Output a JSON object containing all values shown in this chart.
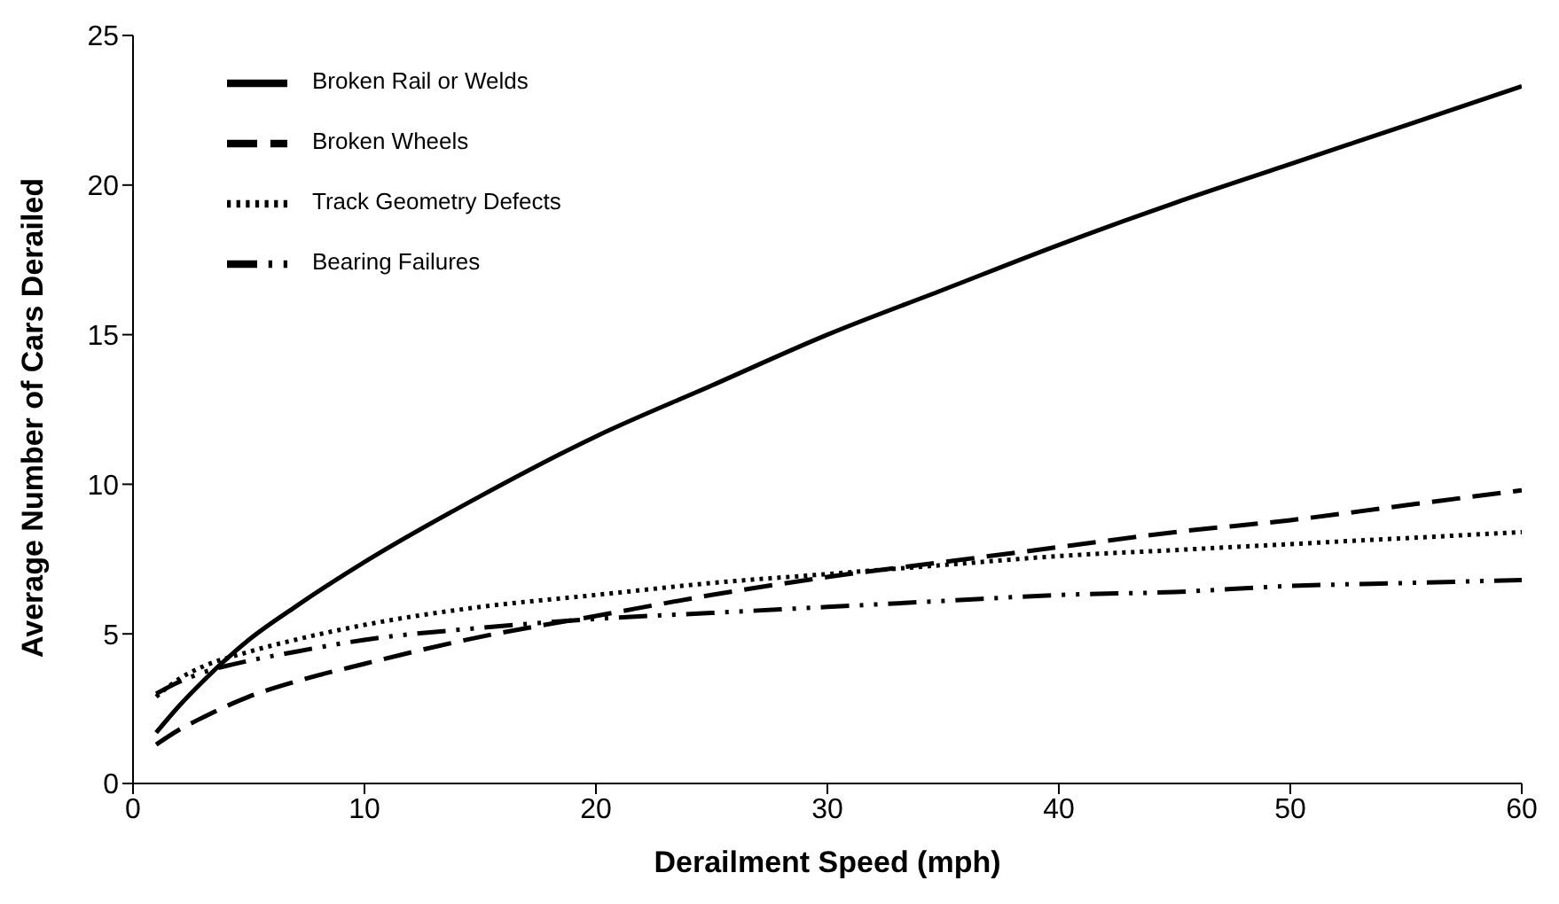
{
  "chart_data": {
    "type": "line",
    "xlabel": "Derailment Speed (mph)",
    "ylabel": "Average Number of Cars Derailed",
    "x": [
      1,
      2,
      3,
      5,
      7,
      10,
      15,
      20,
      25,
      30,
      35,
      40,
      45,
      50,
      55,
      60
    ],
    "series": [
      {
        "name": "Broken Rail or Welds",
        "color": "#000000",
        "line_style": "solid",
        "values": [
          1.7,
          2.6,
          3.4,
          4.8,
          5.9,
          7.4,
          9.6,
          11.6,
          13.3,
          15.0,
          16.5,
          18.0,
          19.4,
          20.7,
          22.0,
          23.3
        ]
      },
      {
        "name": "Broken Wheels",
        "color": "#000000",
        "line_style": "dashed",
        "values": [
          1.3,
          1.8,
          2.2,
          2.9,
          3.4,
          4.0,
          4.9,
          5.6,
          6.3,
          6.9,
          7.4,
          7.9,
          8.4,
          8.8,
          9.3,
          9.8
        ]
      },
      {
        "name": "Track Geometry Defects",
        "color": "#000000",
        "line_style": "dotted",
        "values": [
          2.9,
          3.5,
          3.9,
          4.4,
          4.8,
          5.3,
          5.9,
          6.3,
          6.7,
          7.0,
          7.3,
          7.6,
          7.8,
          8.0,
          8.2,
          8.4
        ]
      },
      {
        "name": "Bearing Failures",
        "color": "#000000",
        "line_style": "dashdot",
        "values": [
          3.0,
          3.4,
          3.7,
          4.1,
          4.4,
          4.8,
          5.2,
          5.5,
          5.7,
          5.9,
          6.1,
          6.3,
          6.4,
          6.6,
          6.7,
          6.8
        ]
      }
    ],
    "xlim": [
      0,
      60
    ],
    "xticks": [
      0,
      10,
      20,
      30,
      40,
      50,
      60
    ],
    "ylim": [
      0,
      25
    ],
    "yticks": [
      0,
      5,
      10,
      15,
      20,
      25
    ],
    "grid": false,
    "legend": "top left",
    "marker": "none"
  }
}
